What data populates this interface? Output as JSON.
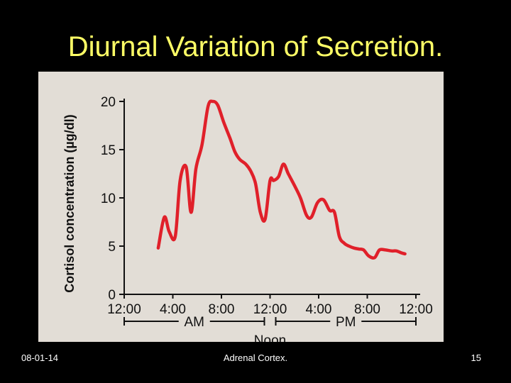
{
  "slide": {
    "title": "Diurnal Variation of Secretion.",
    "footer_date": "08-01-14",
    "footer_center": "Adrenal Cortex.",
    "page_number": "15"
  },
  "colors": {
    "background": "#000000",
    "title": "#ffff66",
    "figure_bg": "#e2ddd6",
    "curve": "#e0202a",
    "axis": "#111111"
  },
  "chart_data": {
    "type": "line",
    "title": "",
    "ylabel": "Cortisol concentration (µg/dl)",
    "xlabel": "",
    "ylim": [
      0,
      20
    ],
    "yticks": [
      0,
      5,
      10,
      15,
      20
    ],
    "xlim": [
      0,
      24
    ],
    "xticks": [
      {
        "x": 0,
        "label": "12:00"
      },
      {
        "x": 4,
        "label": "4:00"
      },
      {
        "x": 8,
        "label": "8:00"
      },
      {
        "x": 12,
        "label": "12:00"
      },
      {
        "x": 16,
        "label": "4:00"
      },
      {
        "x": 20,
        "label": "8:00"
      },
      {
        "x": 24,
        "label": "12:00"
      }
    ],
    "period_labels": [
      {
        "label": "AM",
        "from": 0,
        "to": 12
      },
      {
        "label": "PM",
        "from": 12,
        "to": 24
      },
      {
        "label": "Noon",
        "at": 12
      }
    ],
    "grid": false,
    "legend": "none",
    "series": [
      {
        "x": [
          2.8,
          3.3,
          3.7,
          4.2,
          4.6,
          5.1,
          5.5,
          5.9,
          6.4,
          6.9,
          7.3,
          7.7,
          8.2,
          8.7,
          9.1,
          9.5,
          10.0,
          10.4,
          10.8,
          11.2,
          11.6,
          12.0,
          12.3,
          12.7,
          13.1,
          13.5,
          14.0,
          14.5,
          15.0,
          15.4,
          15.9,
          16.4,
          16.9,
          17.3,
          17.7,
          18.1,
          18.5,
          18.9,
          19.3,
          19.7,
          20.1,
          20.6,
          21.0,
          21.5,
          22.0,
          22.4,
          22.8,
          23.1
        ],
        "y": [
          4.8,
          8.0,
          6.5,
          6.0,
          11.8,
          13.2,
          8.5,
          13.0,
          15.5,
          19.5,
          20.0,
          19.6,
          17.8,
          16.2,
          14.8,
          14.0,
          13.5,
          12.8,
          11.5,
          8.5,
          7.8,
          11.8,
          11.8,
          12.2,
          13.5,
          12.5,
          11.3,
          10.0,
          8.2,
          8.0,
          9.5,
          9.8,
          8.7,
          8.5,
          6.0,
          5.3,
          5.0,
          4.8,
          4.7,
          4.6,
          4.0,
          3.8,
          4.6,
          4.6,
          4.5,
          4.5,
          4.3,
          4.2
        ]
      }
    ]
  }
}
